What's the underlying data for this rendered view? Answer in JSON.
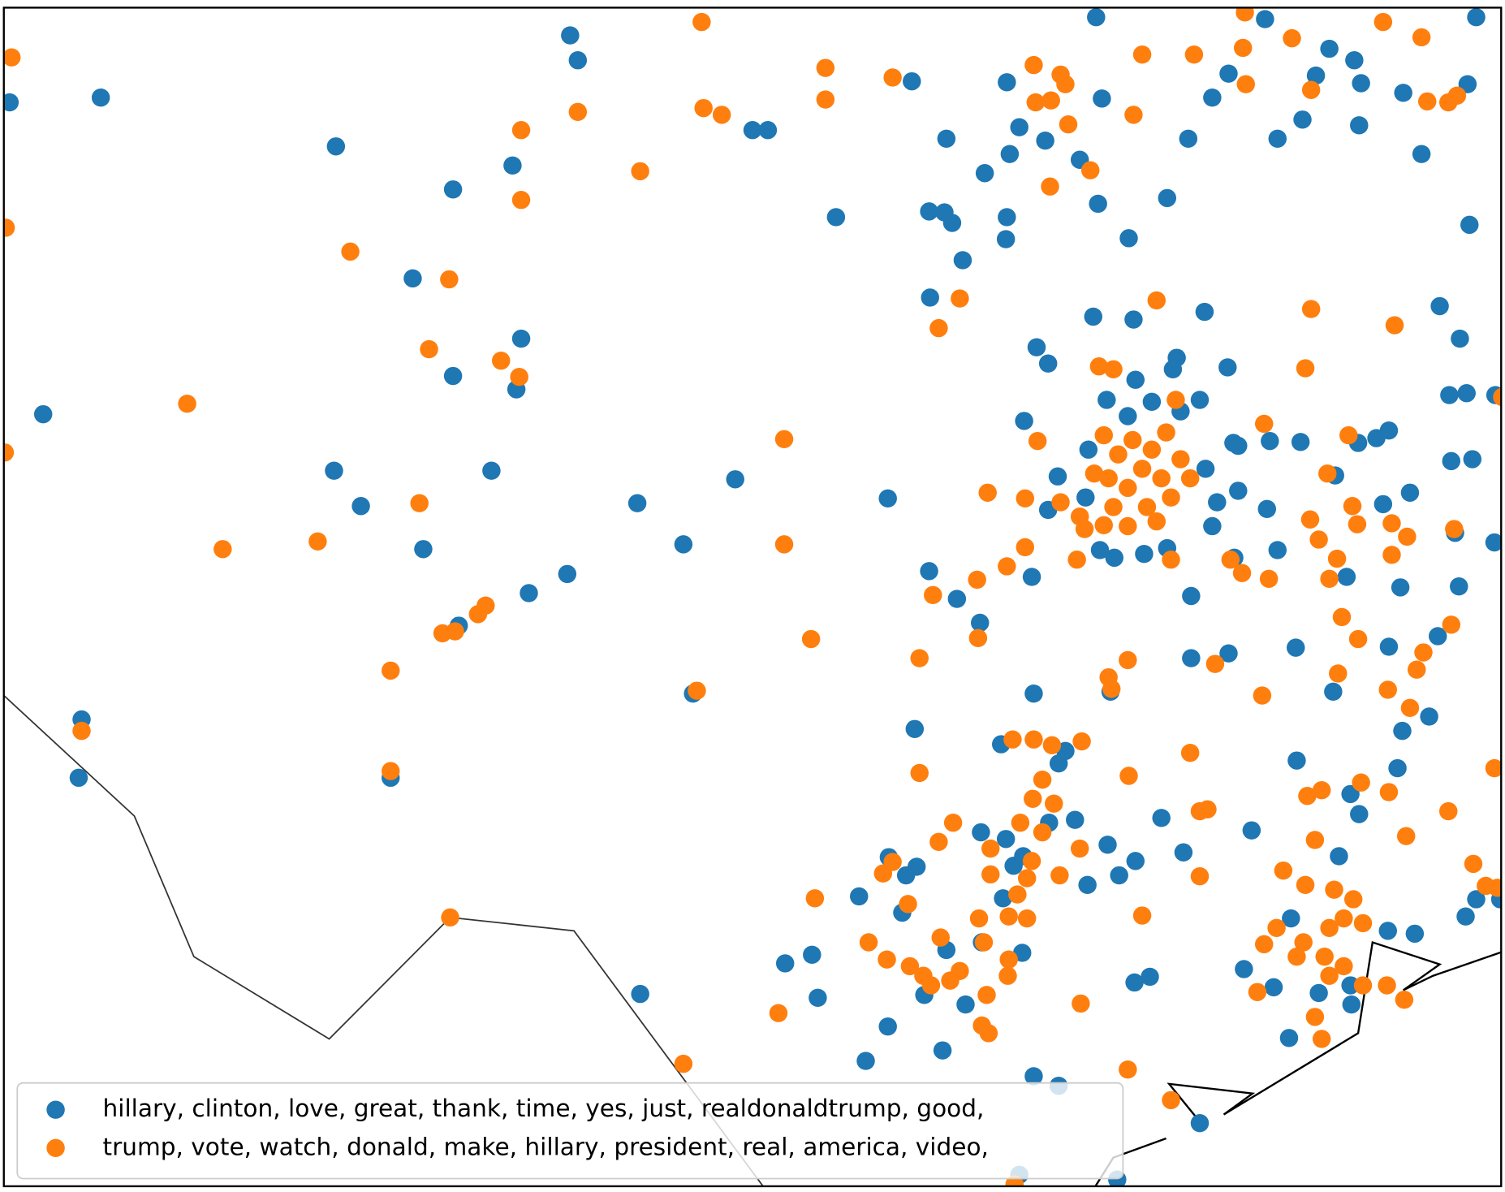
{
  "chart_data": {
    "type": "scatter",
    "xlim": [
      4,
      1564
    ],
    "ylim": [
      1240,
      8
    ],
    "series": [
      {
        "name": "hillary, clinton, love, great, thank, time, yes, just, realdonaldtrump, good,",
        "color": "#1f77b4",
        "x": [
          10,
          105,
          350,
          472,
          534,
          594,
          602,
          430,
          543,
          472,
          538,
          45,
          348,
          376,
          512,
          441,
          591,
          551,
          478,
          664,
          712,
          766,
          925,
          871,
          784,
          800,
          950,
          986,
          1026,
          1049,
          1052,
          1062,
          1089,
          1125,
          1144,
          1148,
          1142,
          1216,
          1176,
          1238,
          1263,
          1280,
          1318,
          1331,
          1357,
          1371,
          1385,
          1411,
          1418,
          1416,
          1462,
          1481,
          1529,
          1531,
          1538,
          968,
          984,
          992,
          1003,
          1049,
          1048,
          969,
          1139,
          1181,
          1255,
          1080,
          1092,
          1183,
          1226,
          1222,
          1279,
          1153,
          1175,
          1200,
          1230,
          1250,
          1067,
          1134,
          1102,
          1092,
          1131,
          1146,
          1161,
          1192,
          1216,
          1256,
          1285,
          1290,
          1323,
          1355,
          1263,
          1268,
          1290,
          1320,
          1286,
          1331,
          1075,
          968,
          997,
          1021,
          1241,
          1241,
          1280,
          1350,
          1403,
          1391,
          1415,
          1434,
          1447,
          1441,
          1469,
          1500,
          1521,
          1510,
          1528,
          1558,
          1512,
          1534,
          1557,
          1516,
          1459,
          1520,
          1498,
          1447,
          1389,
          1489,
          1461,
          1456,
          1351,
          1416,
          1407,
          1304,
          1233,
          1157,
          1077,
          953,
          1043,
          1103,
          1110,
          1120,
          1048,
          1056,
          1066,
          1093,
          1022,
          1045,
          1065,
          1133,
          1154,
          1166,
          1183,
          926,
          944,
          955,
          895,
          940,
          846,
          818,
          852,
          925,
          963,
          1006,
          986,
          1023,
          902,
          982,
          1182,
          1198,
          1296,
          1327,
          1343,
          1374,
          1407,
          1395,
          1345,
          1446,
          1474,
          1527,
          1538,
          1563,
          1077,
          1103,
          1250,
          1164,
          1062,
          667,
          722,
          85,
          82,
          407,
          1210,
          1408
        ],
        "y": [
          107,
          102,
          153,
          198,
          173,
          37,
          63,
          291,
          354,
          393,
          407,
          433,
          492,
          529,
          492,
          574,
          600,
          620,
          654,
          526,
          569,
          501,
          521,
          227,
          136,
          136,
          85,
          145,
          181,
          86,
          161,
          133,
          147,
          167,
          213,
          103,
          18,
          207,
          249,
          145,
          102,
          77,
          20,
          145,
          125,
          79,
          51,
          63,
          87,
          131,
          97,
          161,
          88,
          235,
          18,
          221,
          222,
          233,
          272,
          227,
          250,
          311,
          331,
          334,
          326,
          363,
          380,
          397,
          374,
          386,
          384,
          418,
          435,
          420,
          430,
          418,
          440,
          470,
          498,
          533,
          520,
          575,
          583,
          579,
          573,
          490,
          463,
          466,
          461,
          462,
          550,
          525,
          513,
          532,
          583,
          575,
          603,
          597,
          626,
          651,
          623,
          688,
          683,
          677,
          603,
          497,
          463,
          458,
          450,
          527,
          515,
          320,
          354,
          413,
          411,
          413,
          482,
          480,
          567,
          557,
          614,
          613,
          665,
          676,
          723,
          749,
          764,
          803,
          795,
          851,
          830,
          868,
          891,
          723,
          725,
          762,
          778,
          798,
          785,
          857,
          877,
          905,
          895,
          860,
          870,
          939,
          996,
          925,
          883,
          915,
          900,
          896,
          915,
          906,
          937,
          954,
          998,
          1007,
          1043,
          1073,
          1040,
          1050,
          993,
          985,
          1109,
          1098,
          1027,
          1021,
          1013,
          1032,
          1085,
          1038,
          1030,
          895,
          960,
          973,
          976,
          958,
          940,
          940,
          1125,
          1135,
          1174,
          1233,
          1228,
          1039,
          725,
          752,
          813,
          813,
          855,
          1050
        ]
      },
      {
        "name": "trump, vote, watch, donald, make, hillary, president, real, america, video,",
        "color": "#ff7f0e",
        "x": [
          12,
          6,
          5,
          195,
          232,
          331,
          365,
          447,
          468,
          437,
          522,
          541,
          543,
          543,
          602,
          667,
          731,
          733,
          752,
          860,
          860,
          930,
          817,
          817,
          845,
          506,
          498,
          474,
          461,
          407,
          407,
          726,
          85,
          469,
          712,
          1000,
          978,
          1029,
          1068,
          1049,
          1068,
          1018,
          972,
          1019,
          958,
          1077,
          1105,
          1110,
          1095,
          1113,
          1079,
          1136,
          1094,
          1181,
          1190,
          1244,
          1295,
          1298,
          1346,
          1366,
          1297,
          1441,
          1481,
          1487,
          1509,
          1518,
          1205,
          1366,
          1453,
          1360,
          1145,
          1160,
          1225,
          1317,
          1405,
          1383,
          1081,
          1150,
          1165,
          1180,
          1190,
          1200,
          1215,
          1230,
          1210,
          1175,
          1155,
          1140,
          1160,
          1195,
          1220,
          1240,
          1105,
          1125,
          1130,
          1150,
          1205,
          1175,
          1122,
          1220,
          1282,
          1294,
          1322,
          1365,
          1374,
          1393,
          1385,
          1409,
          1414,
          1450,
          1466,
          1515,
          1450,
          1398,
          1415,
          1512,
          1483,
          1476,
          1446,
          1469,
          1394,
          1266,
          1315,
          1175,
          1155,
          1158,
          1055,
          1077,
          1096,
          1127,
          1240,
          1176,
          958,
          1086,
          1076,
          1098,
          1063,
          1086,
          993,
          978,
          1032,
          1075,
          1070,
          1104,
          1060,
          1125,
          1032,
          1051,
          1070,
          1020,
          930,
          920,
          946,
          849,
          905,
          924,
          948,
          962,
          970,
          990,
          1000,
          1025,
          1051,
          1050,
          980,
          1028,
          1023,
          1030,
          1126,
          1190,
          1250,
          1258,
          1250,
          1362,
          1377,
          1418,
          1447,
          1509,
          1465,
          1535,
          1557,
          1560,
          1548,
          1337,
          1370,
          1360,
          1390,
          1410,
          1400,
          1420,
          1385,
          1330,
          1317,
          1358,
          1380,
          1400,
          1385,
          1420,
          1445,
          1463,
          1370,
          1377,
          1310,
          1351,
          1175,
          1220,
          811,
          1057,
          1565
        ],
        "y": [
          60,
          238,
          473,
          422,
          574,
          566,
          263,
          365,
          292,
          526,
          377,
          394,
          209,
          136,
          117,
          179,
          23,
          113,
          120,
          71,
          104,
          81,
          459,
          569,
          668,
          633,
          642,
          660,
          662,
          701,
          806,
          722,
          764,
          959,
          1112,
          312,
          343,
          515,
          521,
          592,
          572,
          606,
          622,
          667,
          688,
          68,
          78,
          88,
          105,
          130,
          107,
          178,
          195,
          120,
          57,
          57,
          50,
          88,
          40,
          94,
          13,
          23,
          39,
          106,
          107,
          100,
          314,
          323,
          340,
          385,
          383,
          386,
          418,
          443,
          455,
          495,
          461,
          455,
          475,
          460,
          490,
          470,
          452,
          480,
          500,
          510,
          500,
          495,
          530,
          530,
          520,
          500,
          525,
          540,
          553,
          549,
          545,
          550,
          585,
          585,
          585,
          599,
          605,
          543,
          564,
          584,
          605,
          529,
          548,
          580,
          561,
          553,
          547,
          645,
          668,
          653,
          682,
          700,
          721,
          740,
          704,
          694,
          727,
          690,
          708,
          720,
          773,
          773,
          779,
          775,
          787,
          811,
          808,
          815,
          835,
          840,
          860,
          870,
          860,
          880,
          887,
          900,
          918,
          915,
          935,
          887,
          914,
          958,
          960,
          960,
          901,
          913,
          945,
          939,
          985,
          1003,
          1010,
          1020,
          1030,
          1025,
          1015,
          985,
          1003,
          1020,
          980,
          1040,
          1072,
          1080,
          1049,
          957,
          848,
          846,
          916,
          832,
          826,
          818,
          828,
          848,
          874,
          903,
          803,
          928,
          926,
          910,
          878,
          925,
          930,
          940,
          960,
          965,
          970,
          970,
          987,
          985,
          1000,
          1010,
          1020,
          1030,
          1030,
          1045,
          1063,
          1086,
          1037,
          1000,
          1118,
          1150,
          1059,
          1238,
          415
        ]
      }
    ]
  }
}
